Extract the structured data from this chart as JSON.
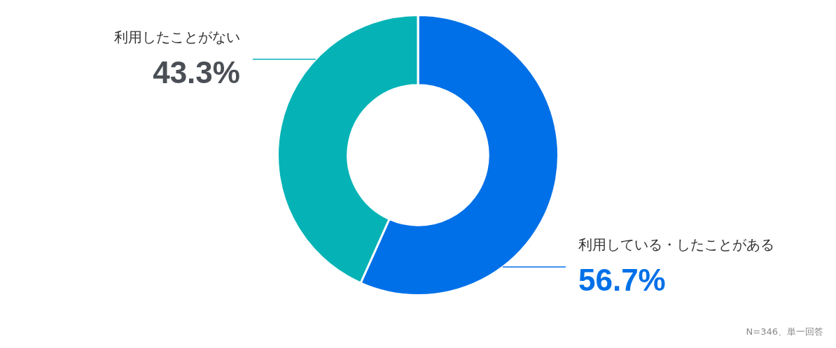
{
  "chart_data": {
    "type": "donut",
    "categories": [
      "利用している・したことがある",
      "利用したことがない"
    ],
    "values": [
      56.7,
      43.3
    ],
    "colors": [
      "#0070e8",
      "#05b3b6"
    ],
    "value_labels": [
      "56.7%",
      "43.3%"
    ],
    "legend": false,
    "annotations": [
      "N=346、単一回答"
    ]
  }
}
